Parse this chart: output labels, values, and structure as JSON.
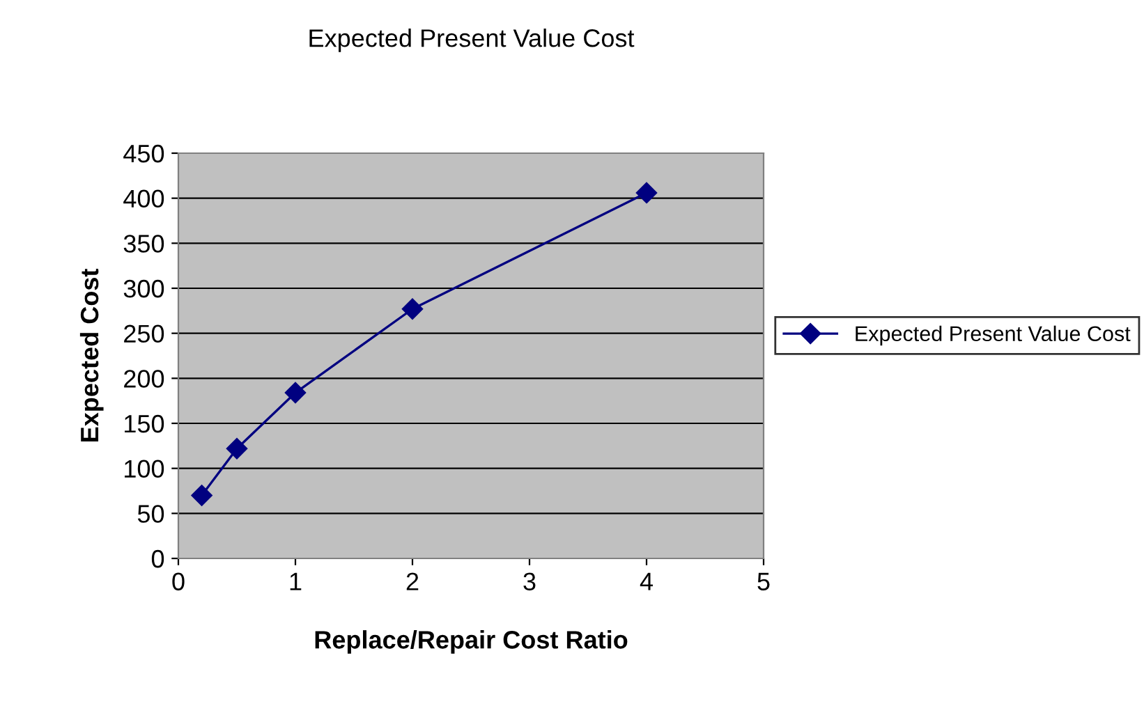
{
  "chart_data": {
    "type": "line",
    "title": "Expected Present Value Cost",
    "xlabel": "Replace/Repair Cost Ratio",
    "ylabel": "Expected Cost",
    "x": [
      0.2,
      0.5,
      1,
      2,
      4
    ],
    "series": [
      {
        "name": "Expected Present Value Cost",
        "color": "#000080",
        "values": [
          70,
          122,
          184,
          277,
          406
        ]
      }
    ],
    "xlim": [
      0,
      5
    ],
    "xticks": [
      0,
      1,
      2,
      3,
      4,
      5
    ],
    "ylim": [
      0,
      450
    ],
    "yticks": [
      0,
      50,
      100,
      150,
      200,
      250,
      300,
      350,
      400,
      450
    ],
    "grid": "y",
    "legend": "right",
    "marker": "diamond",
    "line_style": "solid"
  }
}
